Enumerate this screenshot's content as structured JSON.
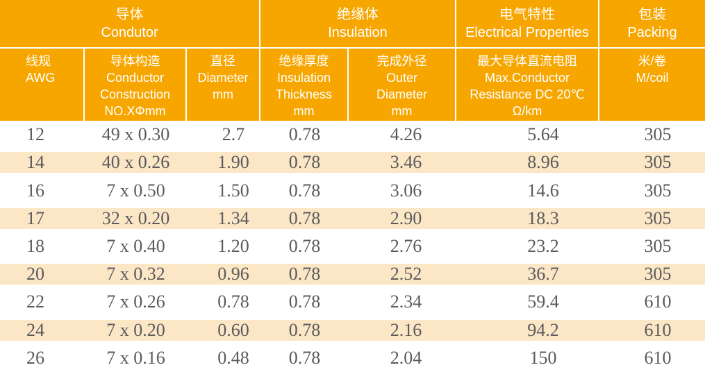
{
  "table": {
    "colors": {
      "header_bg": "#F7A600",
      "header_text": "#FFFFFF",
      "stripe_bg": "#FBE6C6",
      "row_bg": "#FFFFFF",
      "data_text": "#5A5A5C",
      "divider": "#FFFFFF"
    },
    "groups": [
      {
        "zh": "导体",
        "en": "Condutor",
        "span": 3
      },
      {
        "zh": "绝缘体",
        "en": "Insulation",
        "span": 2
      },
      {
        "zh": "电气特性",
        "en": "Electrical Properties",
        "span": 1
      },
      {
        "zh": "包装",
        "en": "Packing",
        "span": 1
      }
    ],
    "columns": [
      {
        "lines": [
          "线规",
          "AWG"
        ]
      },
      {
        "lines": [
          "导体构造",
          "Conductor",
          "Construction",
          "NO.XΦmm"
        ]
      },
      {
        "lines": [
          "直径",
          "Diameter",
          "mm"
        ]
      },
      {
        "lines": [
          "绝缘厚度",
          "Insulation",
          "Thickness",
          "mm"
        ]
      },
      {
        "lines": [
          "完成外径",
          "Outer",
          "Diameter",
          "mm"
        ]
      },
      {
        "lines": [
          "最大导体直流电阻",
          "Max.Conductor",
          "Resistance DC 20℃",
          "Ω/km"
        ]
      },
      {
        "lines": [
          "米/卷",
          "M/coil"
        ]
      }
    ],
    "rows": [
      [
        "12",
        "49 x 0.30",
        "2.7",
        "0.78",
        "4.26",
        "5.64",
        "305"
      ],
      [
        "14",
        "40 x 0.26",
        "1.90",
        "0.78",
        "3.46",
        "8.96",
        "305"
      ],
      [
        "16",
        "7 x 0.50",
        "1.50",
        "0.78",
        "3.06",
        "14.6",
        "305"
      ],
      [
        "17",
        "32 x 0.20",
        "1.34",
        "0.78",
        "2.90",
        "18.3",
        "305"
      ],
      [
        "18",
        "7 x 0.40",
        "1.20",
        "0.78",
        "2.76",
        "23.2",
        "305"
      ],
      [
        "20",
        "7 x 0.32",
        "0.96",
        "0.78",
        "2.52",
        "36.7",
        "305"
      ],
      [
        "22",
        "7 x 0.26",
        "0.78",
        "0.78",
        "2.34",
        "59.4",
        "610"
      ],
      [
        "24",
        "7 x 0.20",
        "0.60",
        "0.78",
        "2.16",
        "94.2",
        "610"
      ],
      [
        "26",
        "7 x 0.16",
        "0.48",
        "0.78",
        "2.04",
        "150",
        "610"
      ]
    ]
  },
  "chart_data": {
    "type": "table",
    "columns": [
      "线规 AWG",
      "导体构造 Conductor Construction NO.XΦmm",
      "直径 Diameter mm",
      "绝缘厚度 Insulation Thickness mm",
      "完成外径 Outer Diameter mm",
      "最大导体直流电阻 Max.Conductor Resistance DC 20℃ Ω/km",
      "米/卷 M/coil"
    ],
    "rows": [
      [
        "12",
        "49 x 0.30",
        "2.7",
        "0.78",
        "4.26",
        "5.64",
        "305"
      ],
      [
        "14",
        "40 x 0.26",
        "1.90",
        "0.78",
        "3.46",
        "8.96",
        "305"
      ],
      [
        "16",
        "7 x 0.50",
        "1.50",
        "0.78",
        "3.06",
        "14.6",
        "305"
      ],
      [
        "17",
        "32 x 0.20",
        "1.34",
        "0.78",
        "2.90",
        "18.3",
        "305"
      ],
      [
        "18",
        "7 x 0.40",
        "1.20",
        "0.78",
        "2.76",
        "23.2",
        "305"
      ],
      [
        "20",
        "7 x 0.32",
        "0.96",
        "0.78",
        "2.52",
        "36.7",
        "305"
      ],
      [
        "22",
        "7 x 0.26",
        "0.78",
        "0.78",
        "2.34",
        "59.4",
        "610"
      ],
      [
        "24",
        "7 x 0.20",
        "0.60",
        "0.78",
        "2.16",
        "94.2",
        "610"
      ],
      [
        "26",
        "7 x 0.16",
        "0.48",
        "0.78",
        "2.04",
        "150",
        "610"
      ]
    ]
  }
}
